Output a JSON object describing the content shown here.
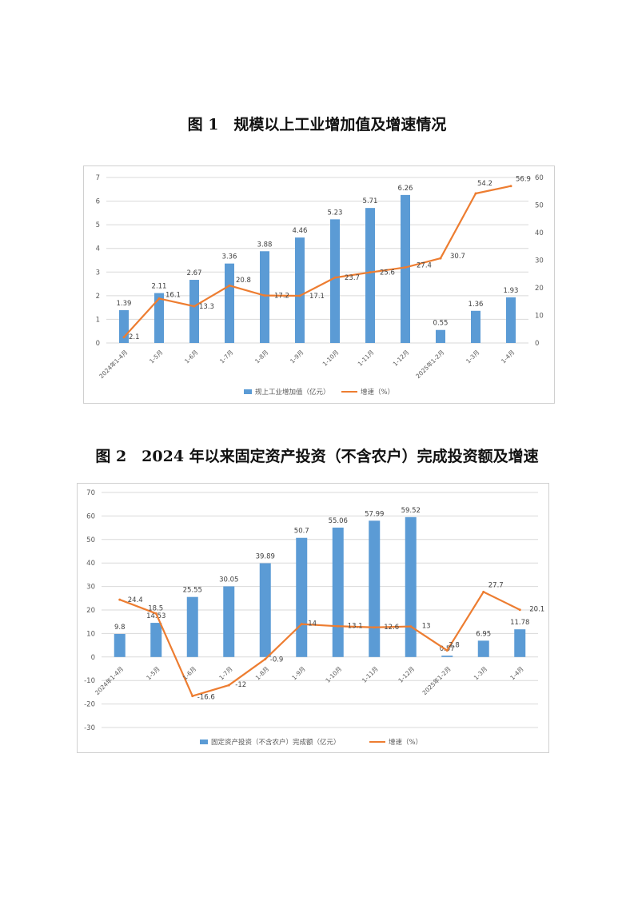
{
  "figures": [
    {
      "title": "图 1　规模以上工业增加值及增速情况"
    },
    {
      "title": "图 2　2024 年以来固定资产投资（不含农户）完成投资额及增速"
    }
  ],
  "colors": {
    "bar": "#5b9bd5",
    "line": "#ed7d31",
    "grid": "#d9d9d9",
    "axis_text": "#595959"
  },
  "chart_data": [
    {
      "type": "bar",
      "categories": [
        "2024年1-4月",
        "1-5月",
        "1-6月",
        "1-7月",
        "1-8月",
        "1-9月",
        "1-10月",
        "1-11月",
        "1-12月",
        "2025年1-2月",
        "1-3月",
        "1-4月"
      ],
      "series": [
        {
          "name": "规上工业增加值（亿元）",
          "type": "bar",
          "axis": "left",
          "values": [
            1.39,
            2.11,
            2.67,
            3.36,
            3.88,
            4.46,
            5.23,
            5.71,
            6.26,
            0.55,
            1.36,
            1.93
          ],
          "labels": [
            "1.39",
            "2.11",
            "2.67",
            "3.36",
            "3.88",
            "4.46",
            "5.23",
            "5.71",
            "6.26",
            "0.55",
            "1.36",
            "1.93"
          ]
        },
        {
          "name": "增速（%）",
          "type": "line",
          "axis": "right",
          "values": [
            2.1,
            16.1,
            13.3,
            20.8,
            17.2,
            17.1,
            23.7,
            25.6,
            27.4,
            30.7,
            54.2,
            56.9
          ],
          "labels": [
            "2.1",
            "16.1",
            "13.3",
            "20.8",
            "17.2",
            "17.1",
            "23.7",
            "25.6",
            "27.4",
            "30.7",
            "54.2",
            "56.9"
          ]
        }
      ],
      "y_left": {
        "min": 0,
        "max": 7,
        "step": 1,
        "ticks": [
          "0",
          "1",
          "2",
          "3",
          "4",
          "5",
          "6",
          "7"
        ]
      },
      "y_right": {
        "min": 0,
        "max": 60,
        "step": 10,
        "ticks": [
          "0",
          "10",
          "20",
          "30",
          "40",
          "50",
          "60"
        ]
      },
      "grid": true,
      "legend_position": "bottom",
      "title": "",
      "xlabel": "",
      "ylabel": ""
    },
    {
      "type": "bar",
      "categories": [
        "2024年1-4月",
        "1-5月",
        "1-6月",
        "1-7月",
        "1-8月",
        "1-9月",
        "1-10月",
        "1-11月",
        "1-12月",
        "2025年1-2月",
        "1-3月",
        "1-4月"
      ],
      "series": [
        {
          "name": "固定资产投资（不含农户）完成额（亿元）",
          "type": "bar",
          "axis": "left",
          "values": [
            9.8,
            14.53,
            25.55,
            30.05,
            39.89,
            50.7,
            55.06,
            57.99,
            59.52,
            0.57,
            6.95,
            11.78
          ],
          "labels": [
            "9.8",
            "14.53",
            "25.55",
            "30.05",
            "39.89",
            "50.7",
            "55.06",
            "57.99",
            "59.52",
            "0.57",
            "6.95",
            "11.78"
          ]
        },
        {
          "name": "增速（%）",
          "type": "line",
          "axis": "left",
          "values": [
            24.4,
            18.5,
            -16.6,
            -12,
            -0.9,
            14,
            13.1,
            12.6,
            13,
            2.8,
            27.7,
            20.1
          ],
          "labels": [
            "24.4",
            "18.5",
            "-16.6",
            "-12",
            "-0.9",
            "14",
            "13.1",
            "12.6",
            "13",
            "2.8",
            "27.7",
            "20.1"
          ]
        }
      ],
      "y_left": {
        "min": -30,
        "max": 70,
        "step": 10,
        "ticks": [
          "-30",
          "-20",
          "-10",
          "0",
          "10",
          "20",
          "30",
          "40",
          "50",
          "60",
          "70"
        ]
      },
      "grid": true,
      "legend_position": "bottom",
      "title": "",
      "xlabel": "",
      "ylabel": ""
    }
  ]
}
